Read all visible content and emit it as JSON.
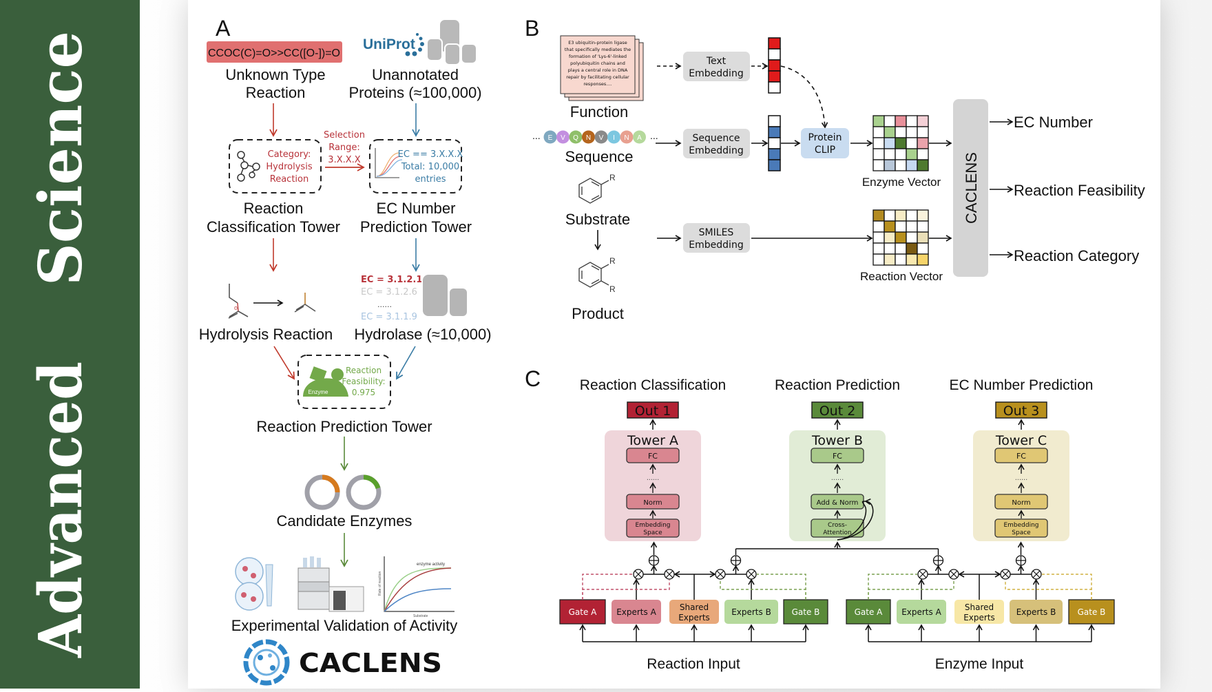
{
  "banner": {
    "line1": "Advanced",
    "line2": "Science"
  },
  "panel_a": {
    "label": "A",
    "smiles": "CCOC(C)=O>>CC([O-])=O",
    "uniprot_logo": "UniProt",
    "unknown_reaction": [
      "Unknown Type",
      "Reaction"
    ],
    "unannotated": [
      "Unannotated",
      "Proteins (≈100,000)"
    ],
    "category_box": [
      "Category:",
      "Hydrolysis",
      "Reaction"
    ],
    "selection_range": [
      "Selection",
      "Range:",
      "3.X.X.X"
    ],
    "ec_box": [
      "EC == 3.X.X.X",
      "Total: 10,000",
      "entries"
    ],
    "classification_tower": [
      "Reaction",
      "Classification Tower"
    ],
    "ec_tower": [
      "EC Number",
      "Prediction Tower"
    ],
    "ec_list": [
      "EC = 3.1.2.1",
      "EC = 3.1.2.6",
      "......",
      "EC = 3.1.1.9"
    ],
    "hydrolysis_reaction": "Hydrolysis Reaction",
    "hydrolase": "Hydrolase (≈10,000)",
    "enzyme_icon_label": "Enzyme",
    "feasibility_box": [
      "Reaction",
      "Feasibility:",
      "0.975"
    ],
    "prediction_tower": "Reaction Prediction Tower",
    "candidate_enzymes": "Candidate Enzymes",
    "plot_title": "enzyme activity",
    "plot_ylabel": "Rate of reaction",
    "plot_xlabel": "Substrate",
    "experimental_validation": "Experimental Validation of Activity",
    "logo_text": "CACLENS"
  },
  "panel_b": {
    "label": "B",
    "function_text": [
      "E3 ubiquitin-protein ligase",
      "that specifically mediates the",
      "formation of 'Lys-6'-linked",
      "polyubiquitin chains and",
      "plays a central role in DNA",
      "repair by facilitating cellular",
      "responses...."
    ],
    "function": "Function",
    "sequence_letters": [
      "E",
      "V",
      "Q",
      "N",
      "V",
      "I",
      "N",
      "A"
    ],
    "ellipsis": "...",
    "sequence": "Sequence",
    "substrate": "Substrate",
    "product": "Product",
    "r_group": "R",
    "text_embedding": [
      "Text",
      "Embedding"
    ],
    "sequence_embedding": [
      "Sequence",
      "Embedding"
    ],
    "smiles_embedding": [
      "SMILES",
      "Embedding"
    ],
    "protein_clip": [
      "Protein",
      "CLIP"
    ],
    "enzyme_vector": "Enzyme Vector",
    "reaction_vector": "Reaction Vector",
    "caclens": "CACLENS",
    "outputs": [
      "EC Number",
      "Reaction Feasibility",
      "Reaction Category"
    ]
  },
  "panel_c": {
    "label": "C",
    "tasks": [
      {
        "title": "Reaction Classification",
        "out": "Out 1",
        "tower": "Tower A",
        "fc": "FC",
        "dots": "......",
        "mid": "Norm",
        "bottom": [
          "Embedding",
          "Space"
        ],
        "color": "#b22234"
      },
      {
        "title": "Reaction Prediction",
        "out": "Out 2",
        "tower": "Tower B",
        "fc": "FC",
        "dots": "......",
        "mid": "Add & Norm",
        "bottom": [
          "Cross-",
          "Attention"
        ],
        "color": "#5a8a3a"
      },
      {
        "title": "EC Number Prediction",
        "out": "Out 3",
        "tower": "Tower C",
        "fc": "FC",
        "dots": "......",
        "mid": "Norm",
        "bottom": [
          "Embedding",
          "Space"
        ],
        "color": "#b8901e"
      }
    ],
    "reaction_modules": [
      "Gate A",
      "Experts A",
      "Shared Experts",
      "Experts B",
      "Gate B"
    ],
    "enzyme_modules": [
      "Gate A",
      "Experts A",
      "Shared Experts",
      "Experts B",
      "Gate B"
    ],
    "reaction_input": "Reaction Input",
    "enzyme_input": "Enzyme Input"
  }
}
